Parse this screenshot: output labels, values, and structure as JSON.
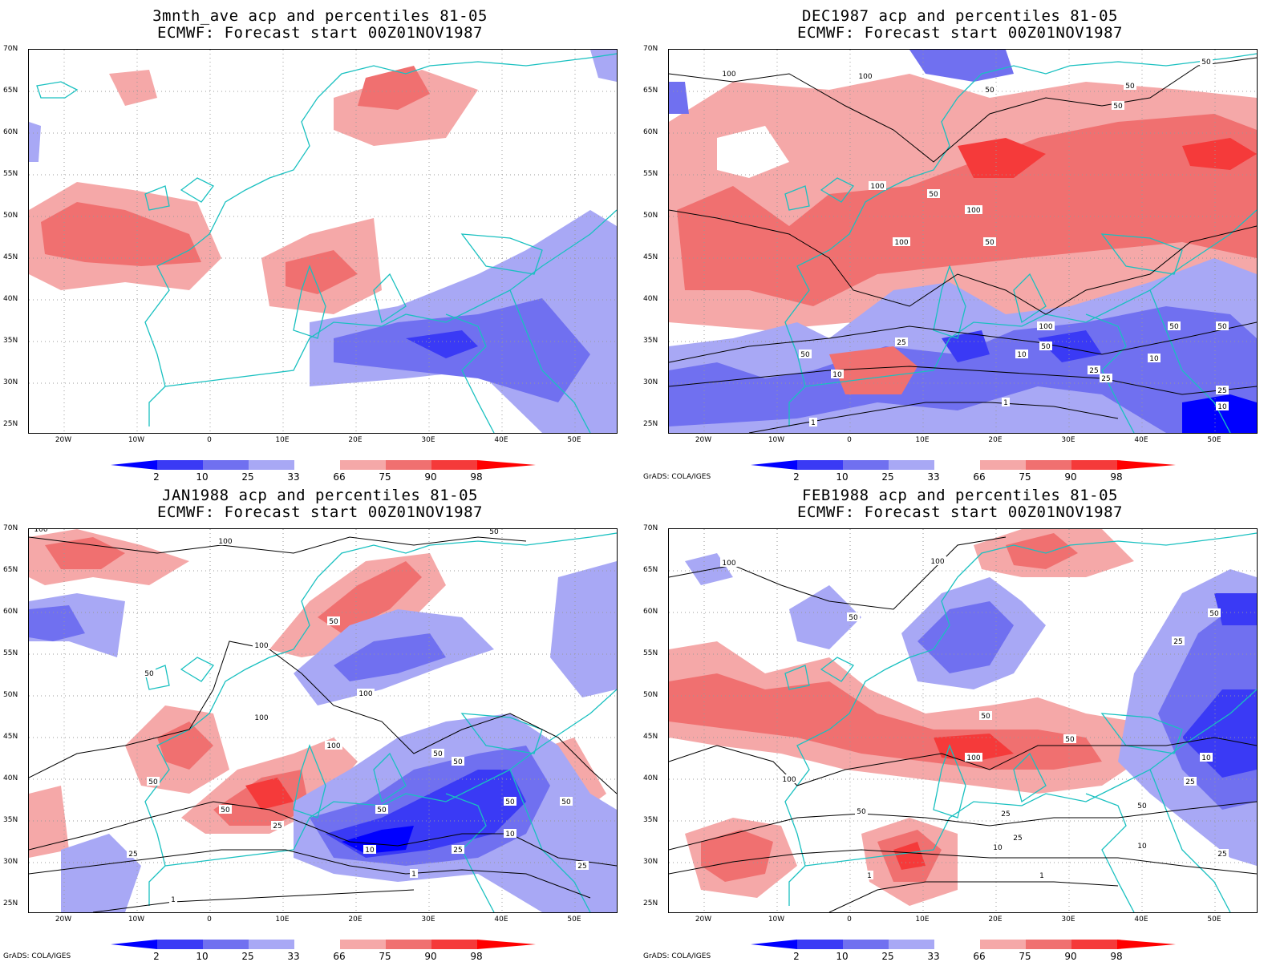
{
  "panels": [
    {
      "title_line1": "3mnth_ave acp and percentiles 81-05",
      "title_line2": "ECMWF: Forecast start 00Z01NOV1987",
      "credit": ""
    },
    {
      "title_line1": "DEC1987 acp and percentiles 81-05",
      "title_line2": "ECMWF: Forecast start 00Z01NOV1987",
      "credit": "GrADS: COLA/IGES"
    },
    {
      "title_line1": "JAN1988 acp and percentiles 81-05",
      "title_line2": "ECMWF: Forecast start 00Z01NOV1987",
      "credit": "GrADS: COLA/IGES"
    },
    {
      "title_line1": "FEB1988 acp and percentiles 81-05",
      "title_line2": "ECMWF: Forecast start 00Z01NOV1987",
      "credit": "GrADS: COLA/IGES"
    }
  ],
  "axes": {
    "lat_ticks": [
      "70N",
      "65N",
      "60N",
      "55N",
      "50N",
      "45N",
      "40N",
      "35N",
      "30N",
      "25N"
    ],
    "lon_ticks": [
      "20W",
      "10W",
      "0",
      "10E",
      "20E",
      "30E",
      "40E",
      "50E"
    ]
  },
  "colorbar": {
    "labels": [
      "2",
      "10",
      "25",
      "33",
      "66",
      "75",
      "90",
      "98"
    ],
    "colors": [
      "#0000ff",
      "#3a3af5",
      "#7070f0",
      "#a8a8f5",
      "#ffffff",
      "#f5a8a8",
      "#f07070",
      "#f53a3a",
      "#ff0000"
    ]
  },
  "colors": {
    "coast": "#19c0c0",
    "contour": "#000000",
    "grid": "#999999"
  },
  "contour_labels": {
    "dec": [
      "100",
      "100",
      "50",
      "50",
      "50",
      "100",
      "50",
      "100",
      "100",
      "50",
      "100",
      "25",
      "50",
      "50",
      "10",
      "50",
      "25",
      "10",
      "10",
      "25",
      "1",
      "10",
      "1",
      "50",
      "25",
      "50"
    ],
    "jan": [
      "100",
      "100",
      "50",
      "50",
      "100",
      "50",
      "100",
      "100",
      "100",
      "50",
      "25",
      "50",
      "50",
      "50",
      "50",
      "50",
      "25",
      "10",
      "25",
      "10",
      "1",
      "1",
      "25",
      "50"
    ],
    "feb": [
      "100",
      "100",
      "50",
      "100",
      "50",
      "100",
      "50",
      "50",
      "25",
      "25",
      "50",
      "10",
      "10",
      "25",
      "1",
      "1",
      "10",
      "25",
      "25",
      "50"
    ]
  }
}
